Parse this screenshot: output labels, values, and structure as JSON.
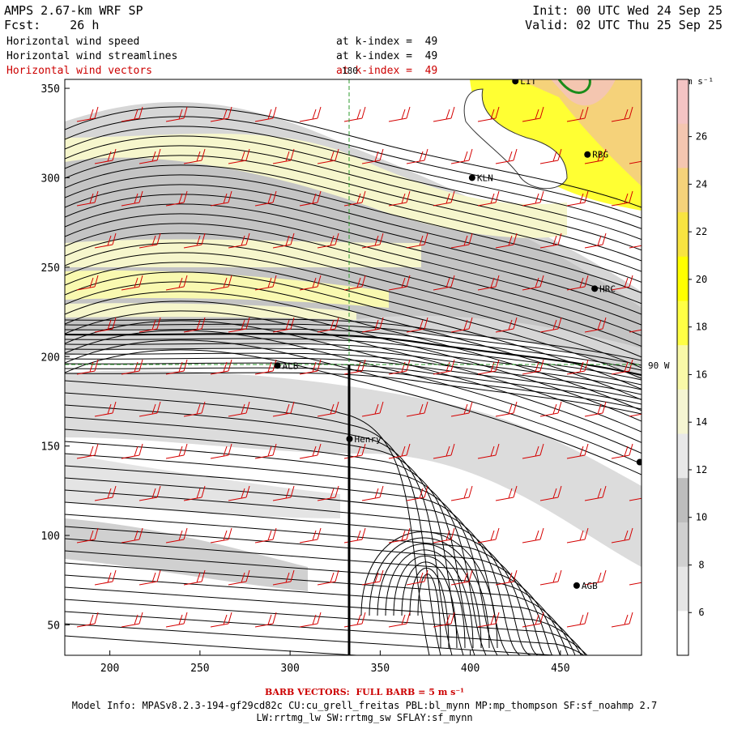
{
  "header": {
    "model_title": "AMPS 2.67-km WRF SP",
    "forecast": "Fcst:    26 h",
    "init": "Init: 00 UTC Wed 24 Sep 25",
    "valid": "Valid: 02 UTC Thu 25 Sep 25"
  },
  "fields": [
    {
      "name": "Horizontal wind speed",
      "level": "at k-index =  49",
      "color": "#000000"
    },
    {
      "name": "Horizontal wind streamlines",
      "level": "at k-index =  49",
      "color": "#000000"
    },
    {
      "name": "Horizontal wind vectors",
      "level": "at k-index =  49",
      "color": "#cc0000"
    }
  ],
  "axes": {
    "x_ticks": [
      "200",
      "250",
      "300",
      "350",
      "400",
      "450"
    ],
    "y_ticks": [
      "50",
      "100",
      "150",
      "200",
      "250",
      "300",
      "350"
    ],
    "x_range": [
      175,
      495
    ],
    "y_range": [
      33,
      355
    ]
  },
  "grid_labels": {
    "meridian": "180",
    "parallel": "90 W"
  },
  "stations": [
    {
      "name": "LIT",
      "x": 425,
      "y": 354
    },
    {
      "name": "RBG",
      "x": 465,
      "y": 313
    },
    {
      "name": "KLN",
      "x": 401,
      "y": 300
    },
    {
      "name": "HRC",
      "x": 469,
      "y": 238
    },
    {
      "name": "ALB",
      "x": 293,
      "y": 195
    },
    {
      "name": "Henry",
      "x": 333,
      "y": 154
    },
    {
      "name": "AGB",
      "x": 459,
      "y": 72
    },
    {
      "name": "",
      "x": 494,
      "y": 141
    }
  ],
  "colorbar": {
    "unit": "m s⁻¹",
    "labels": [
      "6",
      "8",
      "10",
      "12",
      "14",
      "16",
      "18",
      "20",
      "22",
      "24",
      "26"
    ],
    "colors": [
      "#ffffff",
      "#e6e6e6",
      "#d0d0d0",
      "#bdbdbd",
      "#e8e8e8",
      "#f5f5d2",
      "#f9f9a8",
      "#ffff44",
      "#ffff00",
      "#f8e440",
      "#f5d27a",
      "#f4c6b0",
      "#f4c4c4"
    ]
  },
  "footer": {
    "barb_note": "BARB VECTORS:  FULL BARB = 5 m s⁻¹",
    "model_info": "Model Info: MPASv8.2.3-194-gf29cd82c CU:cu_grell_freitas PBL:bl_mynn MP:mp_thompson SF:sf_noahmp 2.7",
    "physics": "LW:rrtmg_lw SW:rrtmg_sw SFLAY:sf_mynn"
  }
}
